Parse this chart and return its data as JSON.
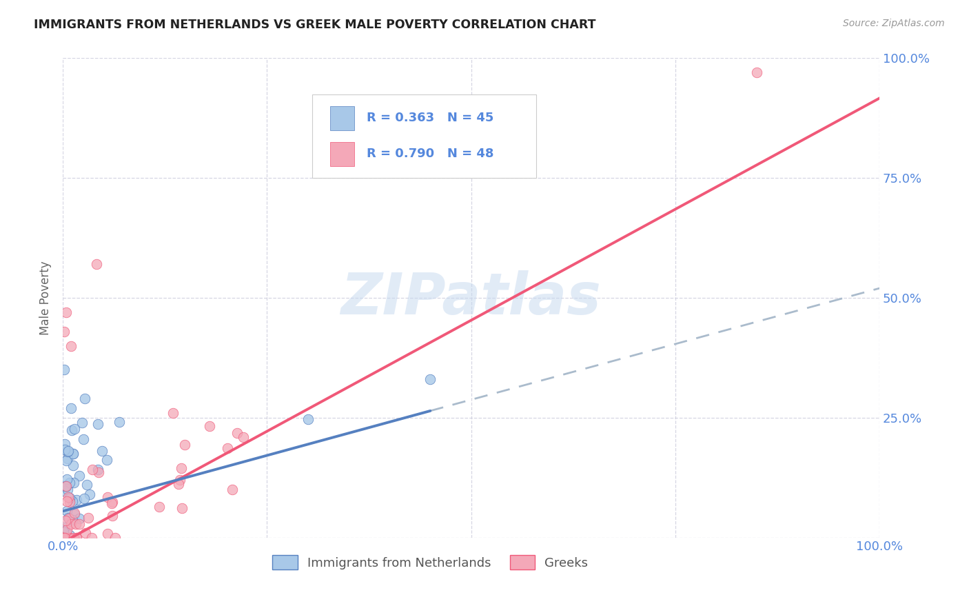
{
  "title": "IMMIGRANTS FROM NETHERLANDS VS GREEK MALE POVERTY CORRELATION CHART",
  "source": "Source: ZipAtlas.com",
  "ylabel": "Male Poverty",
  "watermark": "ZIPatlas",
  "color_netherlands": "#a8c8e8",
  "color_greeks": "#f4a8b8",
  "color_netherlands_line": "#5580c0",
  "color_greeks_line": "#f05878",
  "color_axis_labels": "#5588dd",
  "color_title": "#222222",
  "color_source": "#999999",
  "background_color": "#ffffff",
  "color_grid": "#ccccdd",
  "legend_text_color": "#5588dd",
  "legend_label_color": "#333333"
}
